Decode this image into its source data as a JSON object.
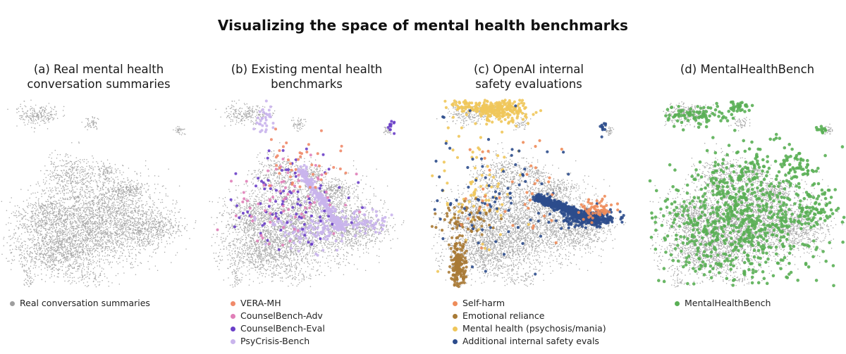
{
  "title": "Visualizing the space of mental health benchmarks",
  "chart_data": [
    {
      "type": "scatter",
      "panel_id": "a",
      "title_lines": [
        "(a) Real mental health",
        "conversation summaries"
      ],
      "legend": [
        {
          "label": "Real conversation summaries",
          "color": "#9e9e9e"
        }
      ],
      "series": [
        {
          "name": "Real conversation summaries",
          "color": "#9e9e9e",
          "density": "background"
        }
      ]
    },
    {
      "type": "scatter",
      "panel_id": "b",
      "title_lines": [
        "(b) Existing mental health",
        "benchmarks"
      ],
      "legend": [
        {
          "label": "VERA-MH",
          "color": "#f08a6a"
        },
        {
          "label": "CounselBench-Adv",
          "color": "#e07fb8"
        },
        {
          "label": "CounselBench-Eval",
          "color": "#6a3fc8"
        },
        {
          "label": "PsyCrisis-Bench",
          "color": "#c9b4ec"
        }
      ],
      "series": [
        {
          "name": "VERA-MH",
          "color": "#f08a6a"
        },
        {
          "name": "CounselBench-Adv",
          "color": "#e07fb8"
        },
        {
          "name": "CounselBench-Eval",
          "color": "#6a3fc8"
        },
        {
          "name": "PsyCrisis-Bench",
          "color": "#c9b4ec"
        }
      ]
    },
    {
      "type": "scatter",
      "panel_id": "c",
      "title_lines": [
        "(c) OpenAI internal",
        "safety evaluations"
      ],
      "legend": [
        {
          "label": "Self-harm",
          "color": "#ee8c5a"
        },
        {
          "label": "Emotional reliance",
          "color": "#a87a36"
        },
        {
          "label": "Mental health (psychosis/mania)",
          "color": "#efc65a"
        },
        {
          "label": "Additional internal safety evals",
          "color": "#2c4c8c"
        }
      ],
      "series": [
        {
          "name": "Self-harm",
          "color": "#ee8c5a"
        },
        {
          "name": "Emotional reliance",
          "color": "#a87a36"
        },
        {
          "name": "Mental health (psychosis/mania)",
          "color": "#efc65a"
        },
        {
          "name": "Additional internal safety evals",
          "color": "#2c4c8c"
        }
      ]
    },
    {
      "type": "scatter",
      "panel_id": "d",
      "title_lines": [
        "(d) MentalHealthBench"
      ],
      "legend": [
        {
          "label": "MentalHealthBench",
          "color": "#5aaf55"
        }
      ],
      "series": [
        {
          "name": "MentalHealthBench",
          "color": "#5aaf55"
        }
      ]
    }
  ]
}
